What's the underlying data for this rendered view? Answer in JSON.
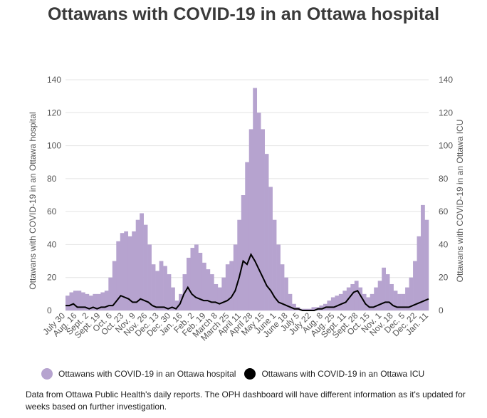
{
  "title": "Ottawans with COVID-19 in an Ottawa hospital",
  "note": "Data from Ottawa Public Health's daily reports. The OPH dashboard will have different information as it's updated for weeks based on further investigation.",
  "colors": {
    "hospital": "#b6a3cf",
    "icu": "#000000",
    "grid": "#e4e4e4",
    "text": "#555555"
  },
  "legend": [
    {
      "label": "Ottawans with COVID-19 in an Ottawa hospital",
      "color": "#b6a3cf"
    },
    {
      "label": "Ottawans with COVID-19 in an Ottawa ICU",
      "color": "#000000"
    }
  ],
  "chart_data": {
    "type": "bar",
    "title": "Ottawans with COVID-19 in an Ottawa hospital",
    "ylabel_left": "Ottawans with COVID-19 in an Ottawa hospital",
    "ylabel_right": "Ottawans with COVID-19 in an Ottawa ICU",
    "ylim": [
      0,
      140
    ],
    "yticks": [
      0,
      20,
      40,
      60,
      80,
      100,
      120,
      140
    ],
    "grid": true,
    "legend_position": "bottom",
    "xlabels": [
      "July 30",
      "Aug. 16",
      "Sept. 2",
      "Sept. 19",
      "Oct. 6",
      "Oct. 23",
      "Nov. 9",
      "Nov. 26",
      "Dec. 13",
      "Dec. 30",
      "Jan. 16",
      "Feb. 2",
      "Feb. 19",
      "March 8",
      "March 25",
      "April 11",
      "April 28",
      "May 15",
      "June 1",
      "June 18",
      "July 5",
      "July 22",
      "Aug. 8",
      "Aug. 25",
      "Sept. 11",
      "Sept. 28",
      "Oct. 15",
      "Nov. 1",
      "Nov. 18",
      "Dec. 5",
      "Dec. 22",
      "Jan. 11"
    ],
    "series": [
      {
        "name": "Ottawans with COVID-19 in an Ottawa hospital",
        "type": "bar",
        "values": [
          9,
          11,
          12,
          12,
          11,
          10,
          9,
          10,
          10,
          11,
          12,
          20,
          30,
          42,
          47,
          48,
          45,
          48,
          55,
          59,
          52,
          40,
          28,
          24,
          30,
          27,
          22,
          14,
          6,
          10,
          22,
          32,
          38,
          40,
          35,
          29,
          25,
          22,
          16,
          14,
          20,
          28,
          30,
          40,
          55,
          70,
          90,
          110,
          135,
          120,
          110,
          95,
          75,
          55,
          40,
          28,
          20,
          10,
          4,
          2,
          1,
          1,
          1,
          2,
          2,
          3,
          4,
          6,
          8,
          9,
          10,
          12,
          14,
          16,
          18,
          14,
          10,
          8,
          10,
          14,
          18,
          26,
          22,
          16,
          12,
          10,
          10,
          14,
          20,
          30,
          45,
          64,
          55
        ]
      },
      {
        "name": "Ottawans with COVID-19 in an Ottawa ICU",
        "type": "line",
        "values": [
          3,
          3,
          4,
          2,
          2,
          2,
          1,
          2,
          1,
          2,
          2,
          3,
          3,
          6,
          9,
          8,
          7,
          5,
          5,
          7,
          6,
          5,
          3,
          2,
          2,
          2,
          1,
          2,
          1,
          4,
          10,
          14,
          10,
          8,
          7,
          6,
          6,
          5,
          5,
          4,
          5,
          6,
          8,
          12,
          20,
          30,
          28,
          34,
          30,
          25,
          20,
          15,
          12,
          8,
          5,
          4,
          3,
          2,
          1,
          1,
          0,
          0,
          0,
          0,
          1,
          1,
          2,
          2,
          2,
          3,
          4,
          5,
          8,
          11,
          12,
          8,
          4,
          2,
          2,
          3,
          4,
          5,
          5,
          3,
          2,
          2,
          2,
          2,
          3,
          4,
          5,
          6,
          7
        ]
      }
    ]
  }
}
